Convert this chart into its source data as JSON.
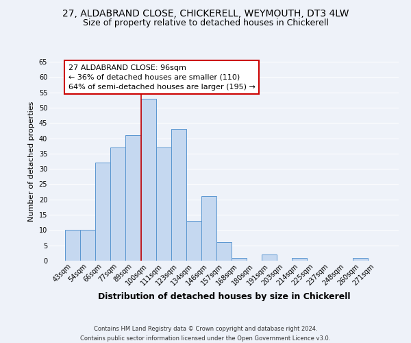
{
  "title": "27, ALDABRAND CLOSE, CHICKERELL, WEYMOUTH, DT3 4LW",
  "subtitle": "Size of property relative to detached houses in Chickerell",
  "xlabel": "Distribution of detached houses by size in Chickerell",
  "ylabel": "Number of detached properties",
  "categories": [
    "43sqm",
    "54sqm",
    "66sqm",
    "77sqm",
    "89sqm",
    "100sqm",
    "111sqm",
    "123sqm",
    "134sqm",
    "146sqm",
    "157sqm",
    "168sqm",
    "180sqm",
    "191sqm",
    "203sqm",
    "214sqm",
    "225sqm",
    "237sqm",
    "248sqm",
    "260sqm",
    "271sqm"
  ],
  "values": [
    10,
    10,
    32,
    37,
    41,
    53,
    37,
    43,
    13,
    21,
    6,
    1,
    0,
    2,
    0,
    1,
    0,
    0,
    0,
    1,
    0
  ],
  "bar_color": "#c5d8f0",
  "bar_edge_color": "#5a96d0",
  "vline_color": "#cc0000",
  "vline_pos": 4.5,
  "ylim": [
    0,
    65
  ],
  "yticks": [
    0,
    5,
    10,
    15,
    20,
    25,
    30,
    35,
    40,
    45,
    50,
    55,
    60,
    65
  ],
  "annotation_title": "27 ALDABRAND CLOSE: 96sqm",
  "annotation_line1": "← 36% of detached houses are smaller (110)",
  "annotation_line2": "64% of semi-detached houses are larger (195) →",
  "annotation_box_facecolor": "#ffffff",
  "annotation_box_edgecolor": "#cc0000",
  "footer_line1": "Contains HM Land Registry data © Crown copyright and database right 2024.",
  "footer_line2": "Contains public sector information licensed under the Open Government Licence v3.0.",
  "background_color": "#eef2f9",
  "grid_color": "#ffffff",
  "title_fontsize": 10,
  "subtitle_fontsize": 9,
  "tick_fontsize": 7,
  "ylabel_fontsize": 8,
  "xlabel_fontsize": 9,
  "annotation_fontsize": 8,
  "footer_fontsize": 6
}
